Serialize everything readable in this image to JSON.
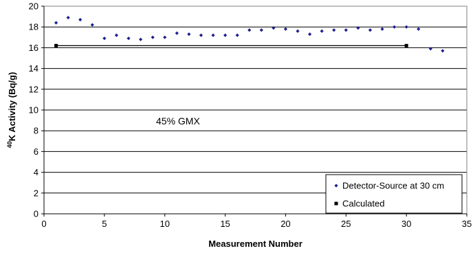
{
  "chart_data": {
    "type": "scatter",
    "xlabel": "Measurement Number",
    "ylabel_superscript": "40",
    "ylabel_main": "K Activity (Bq/g)",
    "xlim": [
      0,
      35
    ],
    "ylim": [
      0,
      20
    ],
    "xticks": [
      0,
      5,
      10,
      15,
      20,
      25,
      30,
      35
    ],
    "yticks": [
      0,
      2,
      4,
      6,
      8,
      10,
      12,
      14,
      16,
      18,
      20
    ],
    "grid": "horizontal",
    "legend_position": "bottom-right",
    "annotation": "45% GMX",
    "series": [
      {
        "name": "Detector-Source at 30 cm",
        "marker": "diamond",
        "color": "#1f1f8f",
        "points": [
          {
            "x": 1,
            "y": 18.4
          },
          {
            "x": 2,
            "y": 18.9
          },
          {
            "x": 3,
            "y": 18.7
          },
          {
            "x": 4,
            "y": 18.2
          },
          {
            "x": 5,
            "y": 16.9
          },
          {
            "x": 6,
            "y": 17.2
          },
          {
            "x": 7,
            "y": 16.9
          },
          {
            "x": 8,
            "y": 16.8
          },
          {
            "x": 9,
            "y": 17.0
          },
          {
            "x": 10,
            "y": 17.0
          },
          {
            "x": 11,
            "y": 17.4
          },
          {
            "x": 12,
            "y": 17.3
          },
          {
            "x": 13,
            "y": 17.2
          },
          {
            "x": 14,
            "y": 17.2
          },
          {
            "x": 15,
            "y": 17.2
          },
          {
            "x": 16,
            "y": 17.2
          },
          {
            "x": 17,
            "y": 17.7
          },
          {
            "x": 18,
            "y": 17.7
          },
          {
            "x": 19,
            "y": 17.9
          },
          {
            "x": 20,
            "y": 17.8
          },
          {
            "x": 21,
            "y": 17.6
          },
          {
            "x": 22,
            "y": 17.3
          },
          {
            "x": 23,
            "y": 17.6
          },
          {
            "x": 24,
            "y": 17.7
          },
          {
            "x": 25,
            "y": 17.7
          },
          {
            "x": 26,
            "y": 17.9
          },
          {
            "x": 27,
            "y": 17.7
          },
          {
            "x": 28,
            "y": 17.8
          },
          {
            "x": 29,
            "y": 18.0
          },
          {
            "x": 30,
            "y": 18.0
          },
          {
            "x": 31,
            "y": 17.8
          },
          {
            "x": 32,
            "y": 15.9
          },
          {
            "x": 33,
            "y": 15.7
          }
        ]
      },
      {
        "name": "Calculated",
        "marker": "square",
        "color": "#000000",
        "points": [
          {
            "x": 1,
            "y": 16.2
          },
          {
            "x": 30,
            "y": 16.2
          }
        ]
      }
    ]
  }
}
